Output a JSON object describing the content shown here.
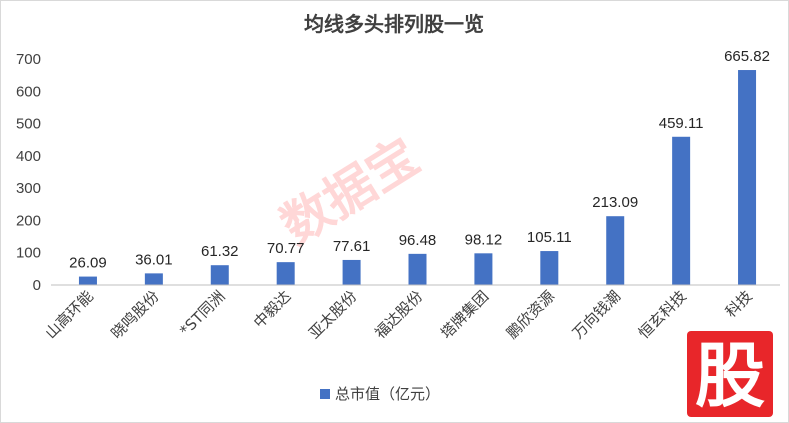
{
  "chart_data": {
    "type": "bar",
    "title": "均线多头排列股一览",
    "categories": [
      "山高环能",
      "晓鸣股份",
      "*ST同洲",
      "中毅达",
      "亚太股份",
      "福达股份",
      "塔牌集团",
      "鹏欣资源",
      "万向钱潮",
      "恒玄科技",
      "科技"
    ],
    "series": [
      {
        "name": "总市值（亿元）",
        "values": [
          26.09,
          36.01,
          61.32,
          70.77,
          77.61,
          96.48,
          98.12,
          105.11,
          213.09,
          459.11,
          665.82
        ],
        "labels": [
          "26.09",
          "36.01",
          "61.32",
          "70.77",
          "77.61",
          "96.48",
          "98.12",
          "105.11",
          "213.09",
          "459.11",
          "665.82"
        ],
        "color": "#4472c4"
      }
    ],
    "yticks": [
      "0",
      "100",
      "200",
      "300",
      "400",
      "500",
      "600",
      "700"
    ],
    "ylim": [
      0,
      700
    ],
    "grid": false,
    "legend": "bottom",
    "xlabel": "",
    "ylabel": ""
  },
  "watermark": {
    "text": "数据宝",
    "color": "#ff2020"
  },
  "logo": {
    "text": "股",
    "color": "#e8262a"
  }
}
